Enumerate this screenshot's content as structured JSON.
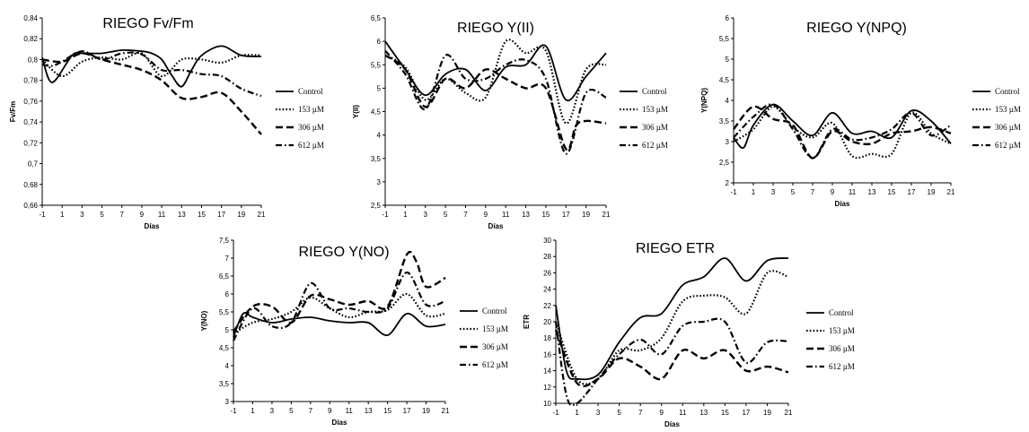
{
  "legend_entries": [
    "Control",
    "153 µM",
    "306 µM",
    "612 µM"
  ],
  "chart_data": [
    {
      "type": "line",
      "title": "RIEGO  Fv/Fm",
      "xlabel": "Días",
      "ylabel": "Fv/Fm",
      "xlim": [
        -1,
        21
      ],
      "ylim": [
        0.66,
        0.84
      ],
      "xticks": [
        -1,
        1,
        3,
        5,
        7,
        9,
        11,
        13,
        15,
        17,
        19,
        21
      ],
      "yticks": [
        "0,66",
        "0,68",
        "0,7",
        "0,72",
        "0,74",
        "0,76",
        "0,78",
        "0,8",
        "0,82",
        "0,84"
      ],
      "legend_position": "right",
      "series": [
        {
          "name": "Control",
          "style": "solid",
          "x": [
            -1,
            0,
            2,
            3,
            5,
            7,
            9,
            10,
            11,
            12,
            13,
            14,
            15,
            17,
            19,
            21
          ],
          "y": [
            0.802,
            0.778,
            0.804,
            0.806,
            0.806,
            0.809,
            0.808,
            0.806,
            0.8,
            0.785,
            0.774,
            0.79,
            0.804,
            0.813,
            0.804,
            0.803
          ]
        },
        {
          "name": "153 µM",
          "style": "dotted",
          "x": [
            -1,
            1,
            3,
            5,
            7,
            9,
            11,
            13,
            15,
            17,
            19,
            21
          ],
          "y": [
            0.8,
            0.784,
            0.798,
            0.802,
            0.8,
            0.806,
            0.784,
            0.8,
            0.8,
            0.797,
            0.804,
            0.804
          ]
        },
        {
          "name": "306 µM",
          "style": "dashed",
          "x": [
            -1,
            1,
            3,
            5,
            7,
            9,
            11,
            13,
            15,
            17,
            19,
            21
          ],
          "y": [
            0.8,
            0.798,
            0.806,
            0.8,
            0.795,
            0.79,
            0.78,
            0.763,
            0.764,
            0.768,
            0.75,
            0.728
          ]
        },
        {
          "name": "612 µM",
          "style": "dashdot",
          "x": [
            -1,
            0,
            1,
            3,
            5,
            7,
            9,
            11,
            13,
            15,
            17,
            19,
            21
          ],
          "y": [
            0.795,
            0.794,
            0.798,
            0.808,
            0.8,
            0.806,
            0.805,
            0.79,
            0.79,
            0.786,
            0.784,
            0.772,
            0.765
          ]
        }
      ]
    },
    {
      "type": "line",
      "title": "RIEGO Y(II)",
      "xlabel": "Días",
      "ylabel": "Y(II)",
      "xlim": [
        -1,
        21
      ],
      "ylim": [
        2.5,
        6.5
      ],
      "xticks": [
        -1,
        1,
        3,
        5,
        7,
        9,
        11,
        13,
        15,
        17,
        19,
        21
      ],
      "yticks": [
        "2,5",
        "3",
        "3,5",
        "4",
        "4,5",
        "5",
        "5,5",
        "6",
        "6,5"
      ],
      "legend_position": "right",
      "series": [
        {
          "name": "Control",
          "style": "solid",
          "x": [
            -1,
            1,
            3,
            5,
            7,
            9,
            11,
            13,
            15,
            17,
            19,
            21
          ],
          "y": [
            6.0,
            5.4,
            4.85,
            5.3,
            5.4,
            4.95,
            5.45,
            5.5,
            5.9,
            4.75,
            5.25,
            5.75
          ]
        },
        {
          "name": "153 µM",
          "style": "dotted",
          "x": [
            -1,
            1,
            3,
            5,
            7,
            9,
            11,
            13,
            15,
            17,
            19,
            21
          ],
          "y": [
            5.7,
            5.45,
            4.75,
            5.2,
            4.9,
            4.8,
            6.0,
            5.75,
            5.8,
            4.25,
            5.4,
            5.5
          ]
        },
        {
          "name": "306 µM",
          "style": "dashed",
          "x": [
            -1,
            1,
            3,
            5,
            7,
            9,
            11,
            13,
            15,
            17,
            18,
            19,
            21
          ],
          "y": [
            5.7,
            5.4,
            4.6,
            5.2,
            5.0,
            5.4,
            5.2,
            5.0,
            5.0,
            3.7,
            4.2,
            4.3,
            4.25
          ]
        },
        {
          "name": "612 µM",
          "style": "dashdot",
          "x": [
            -1,
            1,
            3,
            5,
            7,
            9,
            11,
            13,
            15,
            17,
            19,
            21
          ],
          "y": [
            5.8,
            5.3,
            4.55,
            5.7,
            5.2,
            5.2,
            5.5,
            5.6,
            5.2,
            3.6,
            4.9,
            4.8
          ]
        }
      ]
    },
    {
      "type": "line",
      "title": "RIEGO Y(NPQ)",
      "xlabel": "Días",
      "ylabel": "Y(NPQ)",
      "xlim": [
        -1,
        21
      ],
      "ylim": [
        2,
        6
      ],
      "xticks": [
        -1,
        1,
        3,
        5,
        7,
        9,
        11,
        13,
        15,
        17,
        19,
        21
      ],
      "yticks": [
        "2",
        "2,5",
        "3",
        "3,5",
        "4",
        "4,5",
        "5",
        "5,5",
        "6"
      ],
      "legend_position": "right",
      "series": [
        {
          "name": "Control",
          "style": "solid",
          "x": [
            -1,
            0,
            1,
            3,
            5,
            7,
            9,
            11,
            13,
            15,
            17,
            19,
            21
          ],
          "y": [
            3.1,
            2.85,
            3.4,
            3.9,
            3.5,
            3.15,
            3.7,
            3.2,
            3.25,
            3.1,
            3.75,
            3.5,
            2.95
          ]
        },
        {
          "name": "153 µM",
          "style": "dotted",
          "x": [
            -1,
            1,
            3,
            5,
            7,
            9,
            11,
            13,
            15,
            17,
            19,
            21
          ],
          "y": [
            3.0,
            3.3,
            3.85,
            3.35,
            3.1,
            3.45,
            2.65,
            2.7,
            2.7,
            3.7,
            3.2,
            2.95
          ]
        },
        {
          "name": "306 µM",
          "style": "dashed",
          "x": [
            -1,
            1,
            3,
            5,
            7,
            9,
            11,
            13,
            15,
            17,
            19,
            21
          ],
          "y": [
            3.3,
            3.85,
            3.55,
            3.4,
            2.6,
            3.25,
            3.0,
            2.95,
            3.2,
            3.25,
            3.35,
            3.2
          ]
        },
        {
          "name": "612 µM",
          "style": "dashdot",
          "x": [
            -1,
            1,
            3,
            5,
            7,
            9,
            11,
            13,
            15,
            17,
            19,
            21
          ],
          "y": [
            3.1,
            3.6,
            3.9,
            3.3,
            2.6,
            3.3,
            3.05,
            3.1,
            3.3,
            3.7,
            3.15,
            3.4
          ]
        }
      ]
    },
    {
      "type": "line",
      "title": "RIEGO Y(NO)",
      "xlabel": "Días",
      "ylabel": "Y(NO)",
      "xlim": [
        -1,
        21
      ],
      "ylim": [
        3,
        7.5
      ],
      "xticks": [
        -1,
        1,
        3,
        5,
        7,
        9,
        11,
        13,
        15,
        17,
        19,
        21
      ],
      "yticks": [
        "3",
        "3,5",
        "4",
        "4,5",
        "5",
        "5,5",
        "6",
        "6,5",
        "7",
        "7,5"
      ],
      "legend_position": "right",
      "series": [
        {
          "name": "Control",
          "style": "solid",
          "x": [
            -1,
            0,
            1,
            3,
            5,
            7,
            9,
            11,
            13,
            15,
            17,
            19,
            21
          ],
          "y": [
            4.8,
            5.45,
            5.35,
            5.2,
            5.3,
            5.35,
            5.25,
            5.2,
            5.2,
            4.85,
            5.45,
            5.1,
            5.15
          ]
        },
        {
          "name": "153 µM",
          "style": "dotted",
          "x": [
            -1,
            1,
            3,
            5,
            7,
            9,
            11,
            13,
            15,
            17,
            19,
            21
          ],
          "y": [
            4.9,
            5.2,
            5.3,
            5.5,
            5.9,
            5.6,
            5.35,
            5.5,
            5.55,
            6.0,
            5.4,
            5.45
          ]
        },
        {
          "name": "306 µM",
          "style": "dashed",
          "x": [
            -1,
            1,
            3,
            5,
            7,
            9,
            11,
            13,
            15,
            17,
            18,
            19,
            21
          ],
          "y": [
            4.95,
            5.65,
            5.65,
            5.2,
            5.95,
            5.85,
            5.7,
            5.8,
            5.65,
            7.1,
            6.9,
            6.2,
            6.45
          ]
        },
        {
          "name": "612 µM",
          "style": "dashdot",
          "x": [
            -1,
            1,
            3,
            5,
            7,
            9,
            11,
            13,
            15,
            17,
            19,
            21
          ],
          "y": [
            4.7,
            5.6,
            5.1,
            5.2,
            6.3,
            5.6,
            5.6,
            5.5,
            5.6,
            6.6,
            5.7,
            5.8
          ]
        }
      ]
    },
    {
      "type": "line",
      "title": "RIEGO ETR",
      "xlabel": "Días",
      "ylabel": "ETR",
      "xlim": [
        -1,
        21
      ],
      "ylim": [
        10,
        30
      ],
      "xticks": [
        -1,
        1,
        3,
        5,
        7,
        9,
        11,
        13,
        15,
        17,
        19,
        21
      ],
      "yticks": [
        "10",
        "12",
        "14",
        "16",
        "18",
        "20",
        "22",
        "24",
        "26",
        "28",
        "30"
      ],
      "legend_position": "right",
      "series": [
        {
          "name": "Control",
          "style": "solid",
          "x": [
            -1,
            0,
            1,
            3,
            5,
            7,
            9,
            11,
            13,
            15,
            17,
            19,
            21
          ],
          "y": [
            22,
            14,
            13,
            13.5,
            17.5,
            20.5,
            21,
            24.5,
            25.5,
            27.8,
            25,
            27.5,
            27.8
          ]
        },
        {
          "name": "153 µM",
          "style": "dotted",
          "x": [
            -1,
            1,
            3,
            5,
            7,
            9,
            11,
            13,
            15,
            17,
            19,
            21
          ],
          "y": [
            20,
            13,
            13,
            16.5,
            16.5,
            18,
            22.5,
            23.2,
            23,
            21,
            26,
            25.5
          ]
        },
        {
          "name": "306 µM",
          "style": "dashed",
          "x": [
            -1,
            1,
            3,
            5,
            7,
            9,
            11,
            13,
            15,
            17,
            19,
            21
          ],
          "y": [
            19,
            12.5,
            13,
            15.5,
            14.5,
            13,
            16.5,
            15.5,
            16.5,
            14,
            14.5,
            13.8
          ]
        },
        {
          "name": "612 µM",
          "style": "dashdot",
          "x": [
            -1,
            0,
            1,
            3,
            5,
            7,
            9,
            11,
            13,
            15,
            17,
            19,
            21
          ],
          "y": [
            20,
            11,
            10,
            13,
            16,
            17.8,
            16,
            19.5,
            20,
            20,
            15,
            17.5,
            17.6
          ]
        }
      ]
    }
  ]
}
